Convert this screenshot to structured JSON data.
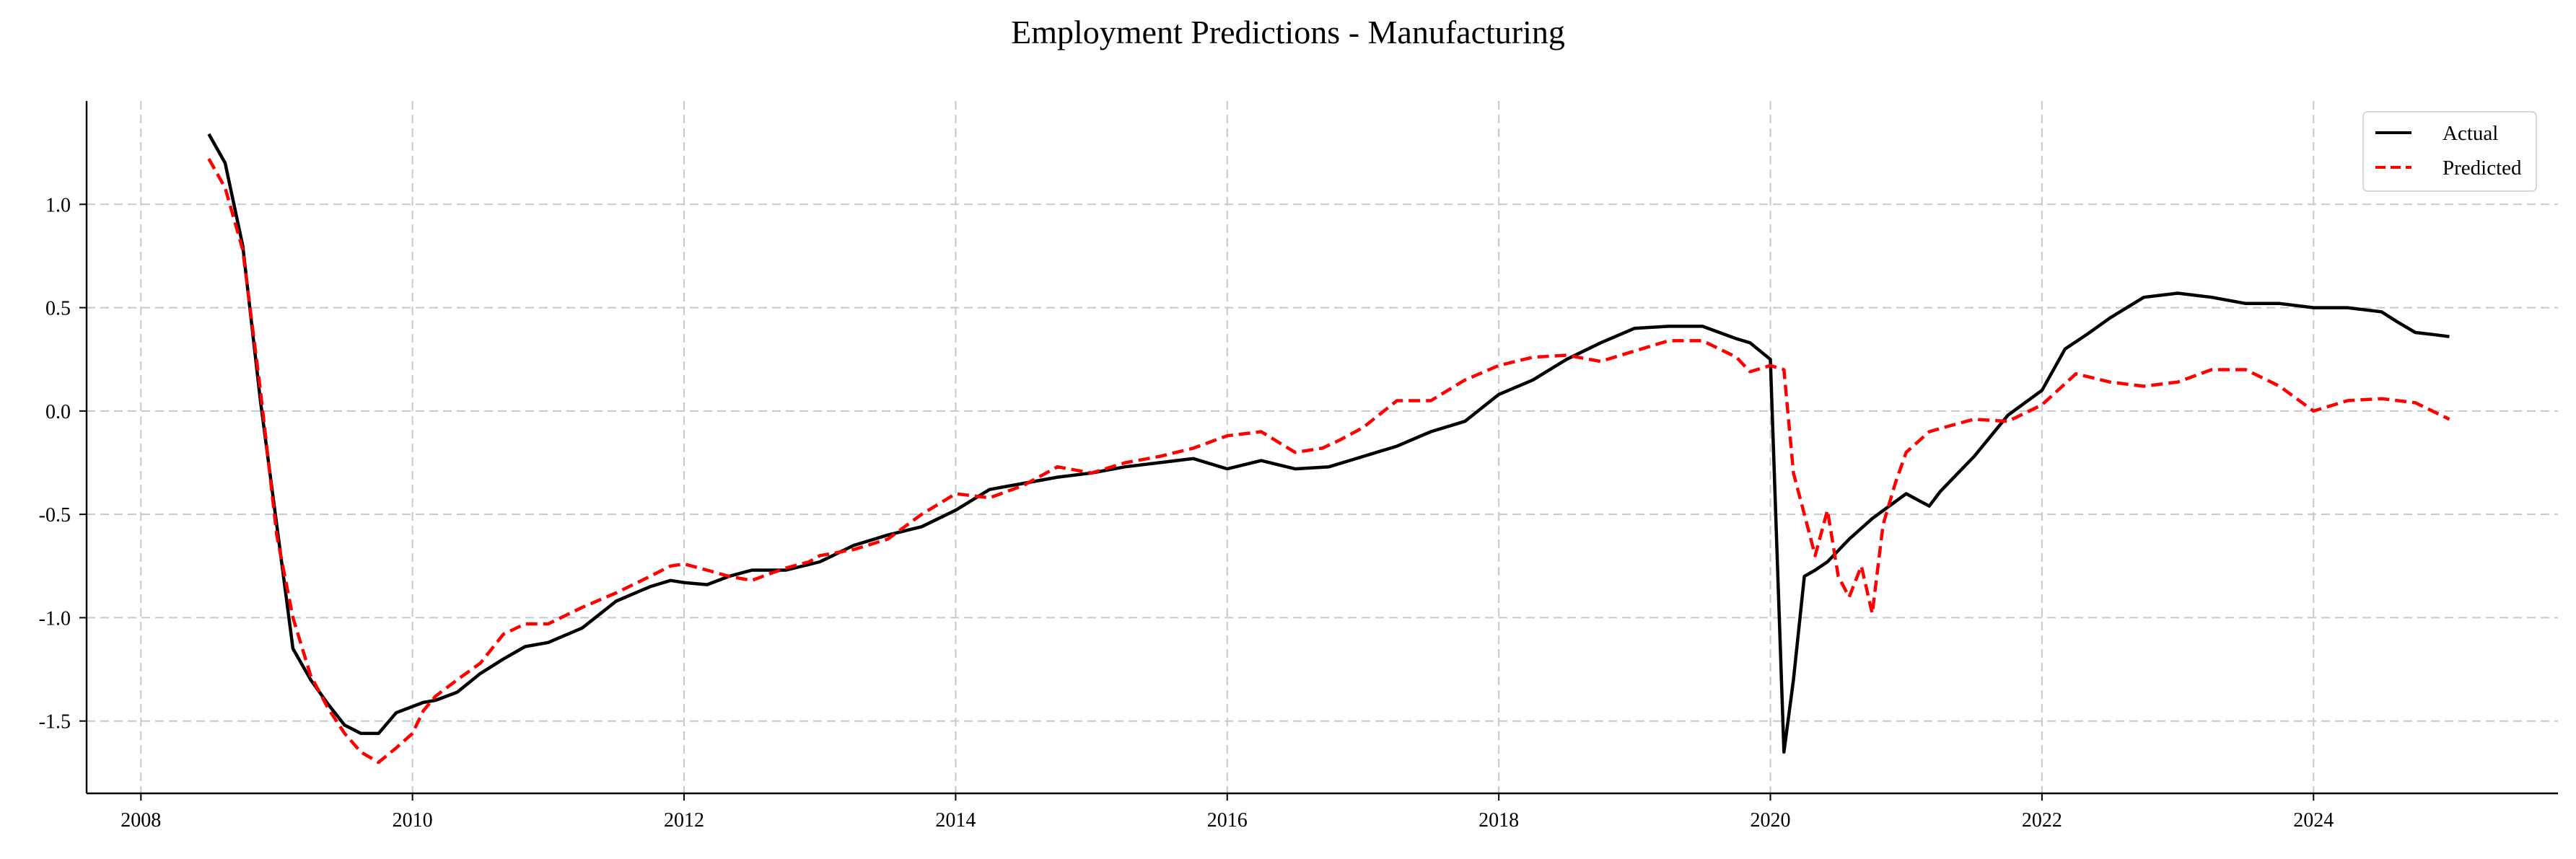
{
  "chart_data": {
    "type": "line",
    "title": "Employment Predictions - Manufacturing",
    "xlabel": "",
    "ylabel": "",
    "xlim": [
      2007.6,
      2025.8
    ],
    "ylim": [
      -1.85,
      1.5
    ],
    "x_ticks": [
      2008,
      2010,
      2012,
      2014,
      2016,
      2018,
      2020,
      2022,
      2024
    ],
    "x_tick_labels": [
      "2008",
      "2010",
      "2012",
      "2014",
      "2016",
      "2018",
      "2020",
      "2022",
      "2024"
    ],
    "y_ticks": [
      1.0,
      0.5,
      0.0,
      -0.5,
      -1.0,
      -1.5
    ],
    "y_tick_labels": [
      "1.0",
      "0.5",
      "0.0",
      "-0.5",
      "-1.0",
      "-1.5"
    ],
    "grid": true,
    "legend_position": "top-right",
    "series": [
      {
        "name": "Actual",
        "color": "#000000",
        "style": "solid",
        "x": [
          2008.5,
          2008.62,
          2008.75,
          2008.88,
          2009.0,
          2009.12,
          2009.25,
          2009.38,
          2009.5,
          2009.62,
          2009.75,
          2009.88,
          2010.0,
          2010.08,
          2010.17,
          2010.33,
          2010.5,
          2010.67,
          2010.83,
          2011.0,
          2011.25,
          2011.5,
          2011.75,
          2011.9,
          2012.0,
          2012.17,
          2012.33,
          2012.5,
          2012.75,
          2013.0,
          2013.25,
          2013.5,
          2013.75,
          2014.0,
          2014.25,
          2014.5,
          2014.75,
          2015.0,
          2015.25,
          2015.5,
          2015.75,
          2016.0,
          2016.25,
          2016.5,
          2016.75,
          2017.0,
          2017.25,
          2017.5,
          2017.75,
          2018.0,
          2018.25,
          2018.5,
          2018.75,
          2019.0,
          2019.25,
          2019.5,
          2019.75,
          2019.85,
          2020.0,
          2020.1,
          2020.17,
          2020.25,
          2020.33,
          2020.42,
          2020.58,
          2020.75,
          2021.0,
          2021.17,
          2021.25,
          2021.5,
          2021.75,
          2022.0,
          2022.17,
          2022.33,
          2022.5,
          2022.75,
          2023.0,
          2023.25,
          2023.5,
          2023.75,
          2024.0,
          2024.25,
          2024.5,
          2024.62,
          2024.75,
          2024.88,
          2025.0
        ],
        "values": [
          1.34,
          1.2,
          0.8,
          0.05,
          -0.55,
          -1.15,
          -1.3,
          -1.42,
          -1.52,
          -1.56,
          -1.56,
          -1.46,
          -1.43,
          -1.41,
          -1.4,
          -1.36,
          -1.27,
          -1.2,
          -1.14,
          -1.12,
          -1.05,
          -0.92,
          -0.85,
          -0.82,
          -0.83,
          -0.84,
          -0.8,
          -0.77,
          -0.77,
          -0.73,
          -0.65,
          -0.6,
          -0.56,
          -0.48,
          -0.38,
          -0.35,
          -0.32,
          -0.3,
          -0.27,
          -0.25,
          -0.23,
          -0.28,
          -0.24,
          -0.28,
          -0.27,
          -0.22,
          -0.17,
          -0.1,
          -0.05,
          0.08,
          0.15,
          0.25,
          0.33,
          0.4,
          0.41,
          0.41,
          0.35,
          0.33,
          0.25,
          -1.65,
          -1.3,
          -0.8,
          -0.77,
          -0.73,
          -0.62,
          -0.52,
          -0.4,
          -0.46,
          -0.39,
          -0.22,
          -0.02,
          0.1,
          0.3,
          0.37,
          0.45,
          0.55,
          0.57,
          0.55,
          0.52,
          0.52,
          0.5,
          0.5,
          0.48,
          0.43,
          0.38,
          0.37,
          0.36
        ],
        "note": ""
      },
      {
        "name": "Predicted",
        "color": "#ff0000",
        "style": "dashed",
        "x": [
          2008.5,
          2008.62,
          2008.75,
          2008.88,
          2009.0,
          2009.12,
          2009.25,
          2009.38,
          2009.5,
          2009.62,
          2009.75,
          2009.88,
          2010.0,
          2010.08,
          2010.17,
          2010.33,
          2010.5,
          2010.67,
          2010.83,
          2011.0,
          2011.25,
          2011.5,
          2011.75,
          2011.9,
          2012.0,
          2012.17,
          2012.33,
          2012.5,
          2012.62,
          2012.75,
          2012.92,
          2013.0,
          2013.25,
          2013.5,
          2013.75,
          2014.0,
          2014.25,
          2014.5,
          2014.75,
          2015.0,
          2015.25,
          2015.5,
          2015.75,
          2016.0,
          2016.25,
          2016.5,
          2016.7,
          2016.83,
          2017.0,
          2017.25,
          2017.5,
          2017.75,
          2018.0,
          2018.25,
          2018.5,
          2018.75,
          2019.0,
          2019.25,
          2019.5,
          2019.75,
          2019.85,
          2020.0,
          2020.1,
          2020.17,
          2020.25,
          2020.33,
          2020.42,
          2020.5,
          2020.58,
          2020.67,
          2020.75,
          2020.83,
          2020.92,
          2021.0,
          2021.17,
          2021.33,
          2021.5,
          2021.75,
          2022.0,
          2022.25,
          2022.5,
          2022.75,
          2023.0,
          2023.25,
          2023.5,
          2023.75,
          2024.0,
          2024.25,
          2024.5,
          2024.75,
          2025.0
        ],
        "values": [
          1.22,
          1.08,
          0.78,
          0.1,
          -0.6,
          -1.0,
          -1.28,
          -1.44,
          -1.56,
          -1.65,
          -1.7,
          -1.63,
          -1.56,
          -1.45,
          -1.38,
          -1.3,
          -1.22,
          -1.08,
          -1.03,
          -1.03,
          -0.95,
          -0.88,
          -0.8,
          -0.75,
          -0.74,
          -0.77,
          -0.8,
          -0.82,
          -0.79,
          -0.76,
          -0.73,
          -0.7,
          -0.67,
          -0.62,
          -0.5,
          -0.4,
          -0.42,
          -0.36,
          -0.27,
          -0.3,
          -0.25,
          -0.22,
          -0.18,
          -0.12,
          -0.1,
          -0.2,
          -0.18,
          -0.14,
          -0.08,
          0.05,
          0.05,
          0.15,
          0.22,
          0.26,
          0.27,
          0.24,
          0.29,
          0.34,
          0.34,
          0.26,
          0.19,
          0.22,
          0.2,
          -0.3,
          -0.5,
          -0.7,
          -0.48,
          -0.8,
          -0.9,
          -0.75,
          -0.98,
          -0.55,
          -0.35,
          -0.2,
          -0.1,
          -0.07,
          -0.04,
          -0.05,
          0.03,
          0.18,
          0.14,
          0.12,
          0.14,
          0.2,
          0.2,
          0.12,
          0.0,
          0.05,
          0.06,
          0.04,
          -0.04
        ]
      }
    ]
  }
}
